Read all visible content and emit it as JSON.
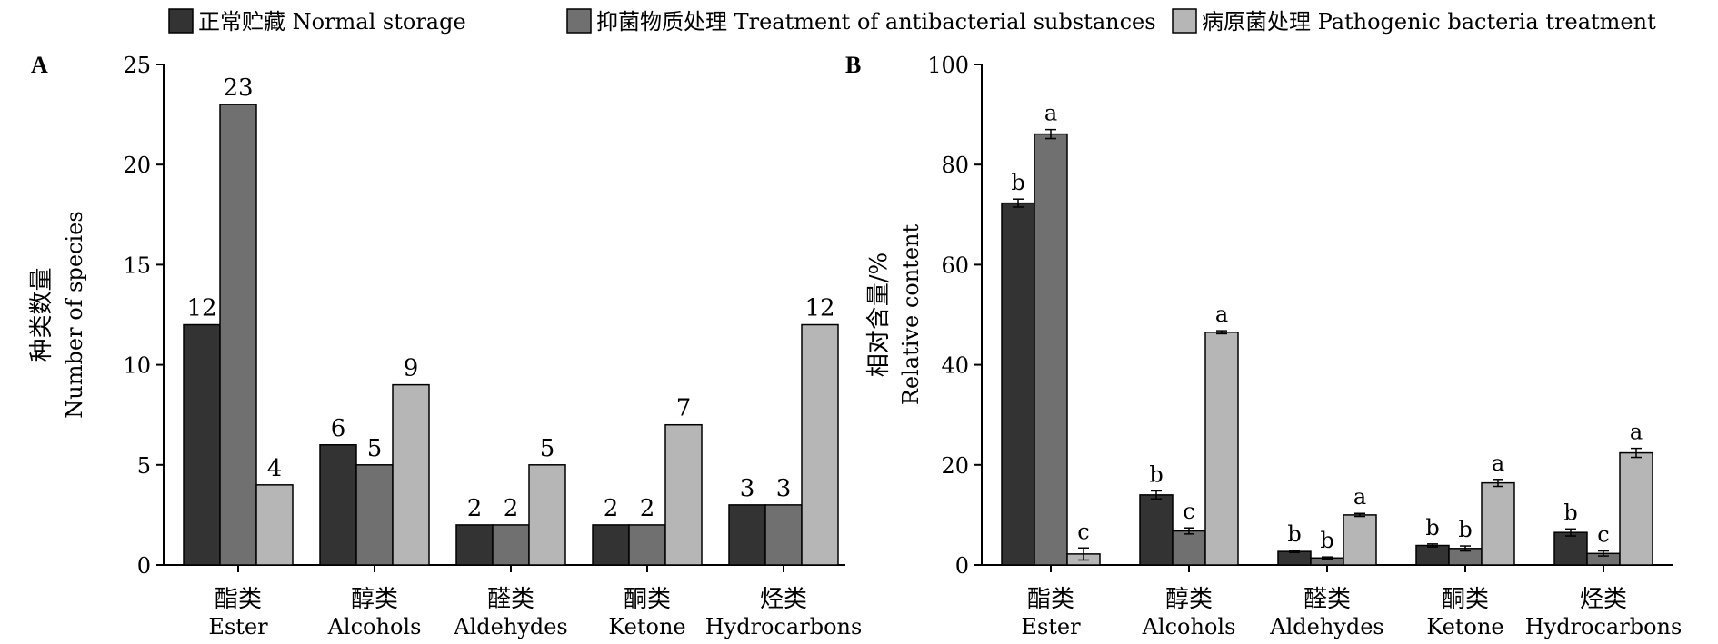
{
  "legend": [
    {
      "label": "正常贮藏 Normal storage",
      "color": "#333333"
    },
    {
      "label": "抑菌物质处理 Treatment of antibacterial substances",
      "color": "#707070"
    },
    {
      "label": "病原菌处理 Pathogenic bacteria treatment",
      "color": "#b6b6b6"
    }
  ],
  "chart_data": [
    {
      "panel": "A",
      "type": "bar",
      "categories_cn": [
        "酯类",
        "醇类",
        "醛类",
        "酮类",
        "烃类"
      ],
      "categories_en": [
        "Ester",
        "Alcohols",
        "Aldehydes",
        "Ketone",
        "Hydrocarbons"
      ],
      "ylabel_cn": "种类数量",
      "ylabel_en": "Number of species",
      "ylim": [
        0,
        25
      ],
      "yticks": [
        0,
        5,
        10,
        15,
        20,
        25
      ],
      "series": [
        {
          "name": "正常贮藏 Normal storage",
          "color": "#333333",
          "values": [
            12,
            6,
            2,
            2,
            3
          ]
        },
        {
          "name": "抑菌物质处理 Treatment of antibacterial substances",
          "color": "#707070",
          "values": [
            23,
            5,
            2,
            2,
            3
          ]
        },
        {
          "name": "病原菌处理 Pathogenic bacteria treatment",
          "color": "#b6b6b6",
          "values": [
            4,
            9,
            5,
            7,
            12
          ]
        }
      ]
    },
    {
      "panel": "B",
      "type": "bar",
      "categories_cn": [
        "酯类",
        "醇类",
        "醛类",
        "酮类",
        "烃类"
      ],
      "categories_en": [
        "Ester",
        "Alcohols",
        "Aldehydes",
        "Ketone",
        "Hydrocarbons"
      ],
      "ylabel_cn": "相对含量/%",
      "ylabel_en": "Relative content",
      "ylim": [
        0,
        100
      ],
      "yticks": [
        0,
        20,
        40,
        60,
        80,
        100
      ],
      "series": [
        {
          "name": "正常贮藏 Normal storage",
          "color": "#333333",
          "values": [
            72.3,
            14.0,
            2.7,
            3.9,
            6.5
          ],
          "errors": [
            0.8,
            0.8,
            0.2,
            0.3,
            0.7
          ],
          "letters": [
            "b",
            "b",
            "b",
            "b",
            "b"
          ]
        },
        {
          "name": "抑菌物质处理 Treatment of antibacterial substances",
          "color": "#707070",
          "values": [
            86.1,
            6.8,
            1.4,
            3.3,
            2.3
          ],
          "errors": [
            0.9,
            0.6,
            0.2,
            0.5,
            0.5
          ],
          "letters": [
            "a",
            "c",
            "b",
            "b",
            "c"
          ]
        },
        {
          "name": "病原菌处理 Pathogenic bacteria treatment",
          "color": "#b6b6b6",
          "values": [
            2.2,
            46.5,
            10.0,
            16.4,
            22.4
          ],
          "errors": [
            1.2,
            0.3,
            0.3,
            0.7,
            0.9
          ],
          "letters": [
            "c",
            "a",
            "a",
            "a",
            "a"
          ]
        }
      ]
    }
  ]
}
